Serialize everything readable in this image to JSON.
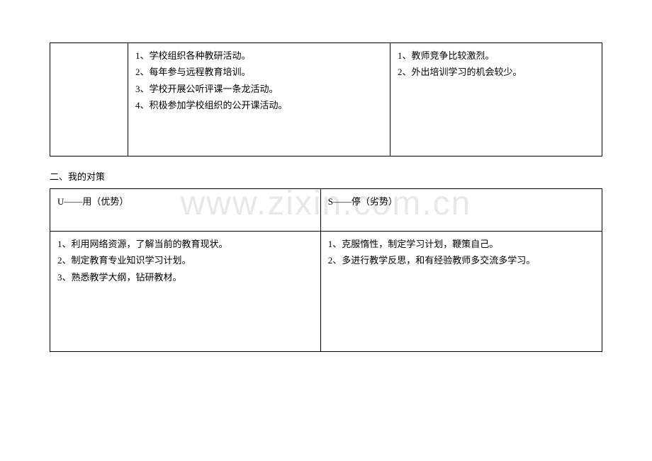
{
  "watermark": "www.zixin.com.cn",
  "table1": {
    "col2_items": [
      "1、学校组织各种教研活动。",
      "2、每年参与远程教育培训。",
      "3、学校开展公听评课一条龙活动。",
      "4、积极参加学校组织的公开课活动。"
    ],
    "col3_items": [
      "1、教师竞争比较激烈。",
      "2、外出培训学习的机会较少。"
    ]
  },
  "section2_title": "二、我的对策",
  "table2": {
    "headerA": "U——用（优势）",
    "headerB": "S——停（劣势）",
    "bodyA_items": [
      "1、利用网络资源，了解当前的教育现状。",
      "2、制定教育专业知识学习计划。",
      "3、熟悉教学大纲，钻研教材。"
    ],
    "bodyB_items": [
      "1、克服惰性，制定学习计划，鞭策自己。",
      "2、多进行教学反思，和有经验教师多交流多学习。"
    ]
  }
}
